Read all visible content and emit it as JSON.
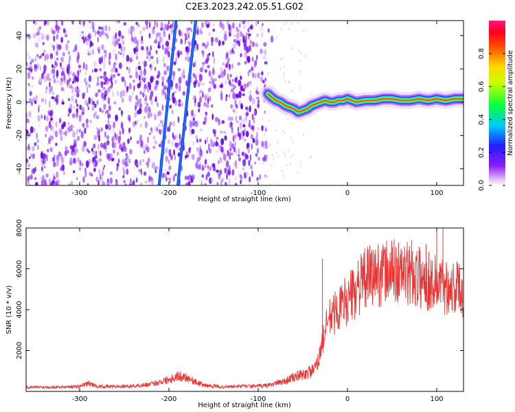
{
  "title": "C2E3.2023.242.05.51.G02",
  "chart_data": [
    {
      "type": "heatmap",
      "xlabel": "Height of straight line (km)",
      "ylabel": "Frequency (Hz)",
      "xlim": [
        -360,
        130
      ],
      "ylim": [
        -50,
        49
      ],
      "xticks": [
        -300,
        -200,
        -100,
        0,
        100
      ],
      "yticks": [
        -40,
        -20,
        0,
        20,
        40
      ],
      "colorbar": {
        "label": "Normalized spectral amplitude",
        "range": [
          0,
          1
        ],
        "ticks": [
          "0.0",
          "0.2",
          "0.4",
          "0.6",
          "0.8"
        ],
        "colormap": "rainbow (purple → blue → cyan → green → yellow → orange → red → magenta)"
      },
      "noise_region_x": [
        -360,
        -90
      ],
      "streaks": [
        {
          "x": [
            -211,
            -192
          ],
          "y": [
            -50,
            49
          ]
        },
        {
          "x": [
            -190,
            -170
          ],
          "y": [
            -50,
            49
          ]
        }
      ],
      "signal_trace": {
        "x": [
          -89,
          -85,
          -80,
          -75,
          -70,
          -65,
          -60,
          -55,
          -50,
          -45,
          -40,
          -35,
          -30,
          -25,
          -20,
          -15,
          -10,
          -5,
          0,
          5,
          10,
          20,
          30,
          40,
          50,
          60,
          70,
          80,
          90,
          100,
          110,
          120,
          130
        ],
        "y": [
          5,
          3,
          1,
          0,
          -2,
          -3,
          -4,
          -6,
          -5,
          -4,
          -2,
          -1,
          0,
          1,
          0,
          0,
          1,
          1,
          2,
          1,
          0,
          1,
          1,
          2,
          2,
          1,
          1,
          2,
          1,
          2,
          1,
          2,
          2
        ]
      },
      "grid": false
    },
    {
      "type": "line",
      "xlabel": "Height of straight line (km)",
      "ylabel": "SNR (10 * v/v)",
      "xlim": [
        -360,
        130
      ],
      "ylim": [
        0,
        8000
      ],
      "xticks": [
        -300,
        -200,
        -100,
        0,
        100
      ],
      "yticks": [
        2000,
        4000,
        6000,
        8000
      ],
      "color": "#ee3333",
      "series": [
        {
          "x": [
            -360,
            -340,
            -320,
            -300,
            -290,
            -280,
            -260,
            -240,
            -220,
            -200,
            -190,
            -180,
            -170,
            -160,
            -140,
            -120,
            -100,
            -90,
            -80,
            -70,
            -60,
            -50,
            -40,
            -35,
            -30,
            -25,
            -20,
            -15,
            -10,
            -5,
            0,
            5,
            10,
            20,
            30,
            40,
            50,
            60,
            70,
            80,
            90,
            100,
            110,
            120,
            130
          ],
          "values": [
            200,
            210,
            220,
            250,
            400,
            250,
            240,
            260,
            350,
            600,
            750,
            700,
            450,
            300,
            220,
            250,
            260,
            300,
            400,
            500,
            700,
            800,
            1000,
            1200,
            2000,
            3000,
            3600,
            3800,
            4000,
            4300,
            4500,
            4700,
            5000,
            5500,
            5700,
            5800,
            5900,
            5800,
            5700,
            5600,
            5400,
            5300,
            5200,
            5100,
            5000
          ]
        }
      ],
      "spikes": [
        {
          "x": -28,
          "y": 6500
        },
        {
          "x": 12,
          "y": 6400
        },
        {
          "x": 72,
          "y": 7400
        },
        {
          "x": 88,
          "y": 7200
        },
        {
          "x": 100,
          "y": 8000
        },
        {
          "x": 107,
          "y": 8000
        }
      ],
      "grid": false
    }
  ]
}
